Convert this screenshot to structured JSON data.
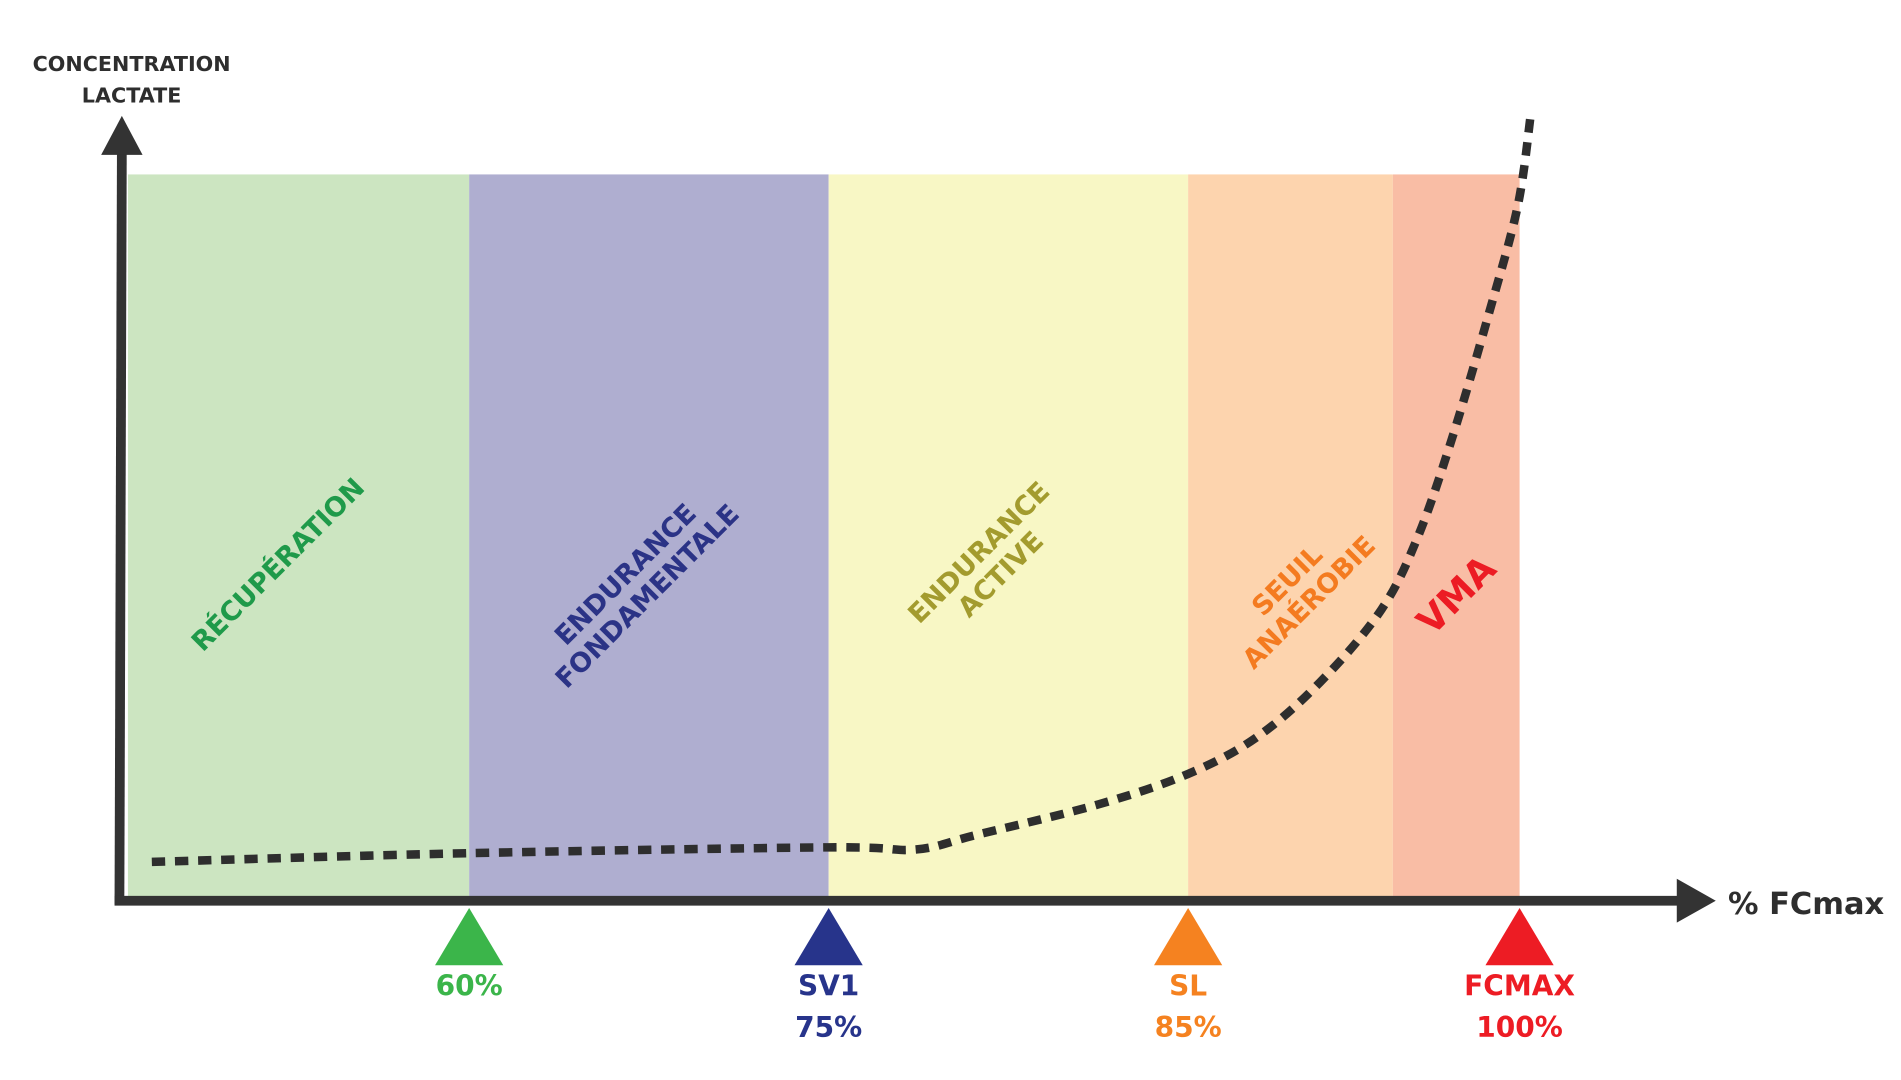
{
  "chart_data": {
    "type": "line",
    "title": "",
    "ylabel": [
      "CONCENTRATION",
      "LACTATE"
    ],
    "xlabel": "% FCmax",
    "ylim": [
      0,
      100
    ],
    "grid": false,
    "zones": [
      {
        "name": "RÉCUPÉRATION",
        "lines": [
          "RÉCUPÉRATION"
        ],
        "from": 50,
        "to": 60,
        "color": "#cce5c1",
        "text_color": "#1f9a4a"
      },
      {
        "name": "ENDURANCE FONDAMENTALE",
        "lines": [
          "ENDURANCE",
          "FONDAMENTALE"
        ],
        "from": 60,
        "to": 75,
        "color": "#afaed0",
        "text_color": "#2b3386"
      },
      {
        "name": "ENDURANCE ACTIVE",
        "lines": [
          "ENDURANCE",
          "ACTIVE"
        ],
        "from": 75,
        "to": 85,
        "color": "#f8f7c5",
        "text_color": "#a39b2e"
      },
      {
        "name": "SEUIL ANAÉROBIE",
        "lines": [
          "SEUIL",
          "ANAÉROBIE"
        ],
        "from": 85,
        "to": 94,
        "color": "#fdd4ae",
        "text_color": "#f47b20"
      },
      {
        "name": "VMA",
        "lines": [
          "VMA"
        ],
        "from": 94,
        "to": 100,
        "color": "#f9bda5",
        "text_color": "#ec1c24"
      }
    ],
    "markers": [
      {
        "pct": 60,
        "lines": [
          "60%"
        ],
        "color": "#3bb54a"
      },
      {
        "pct": 75,
        "lines": [
          "SV1",
          "75%"
        ],
        "color": "#27348b"
      },
      {
        "pct": 85,
        "lines": [
          "SL",
          "85%"
        ],
        "color": "#f58220"
      },
      {
        "pct": 100,
        "lines": [
          "FCMAX",
          "100%"
        ],
        "color": "#ed1c24"
      }
    ],
    "series": [
      {
        "name": "lactate",
        "style": "dotted",
        "color": "#2e2e2e",
        "points": [
          [
            50.7,
            5.5
          ],
          [
            60,
            6.7
          ],
          [
            75,
            7.5
          ],
          [
            77.4,
            7.2
          ],
          [
            79.1,
            9.2
          ],
          [
            82.5,
            13.4
          ],
          [
            85,
            17.6
          ],
          [
            88,
            22.6
          ],
          [
            90.8,
            30.2
          ],
          [
            93.5,
            40.2
          ],
          [
            95.2,
            50.3
          ],
          [
            96.8,
            63.7
          ],
          [
            98.5,
            80.4
          ],
          [
            99.9,
            95.5
          ],
          [
            100.5,
            108
          ]
        ]
      }
    ]
  }
}
